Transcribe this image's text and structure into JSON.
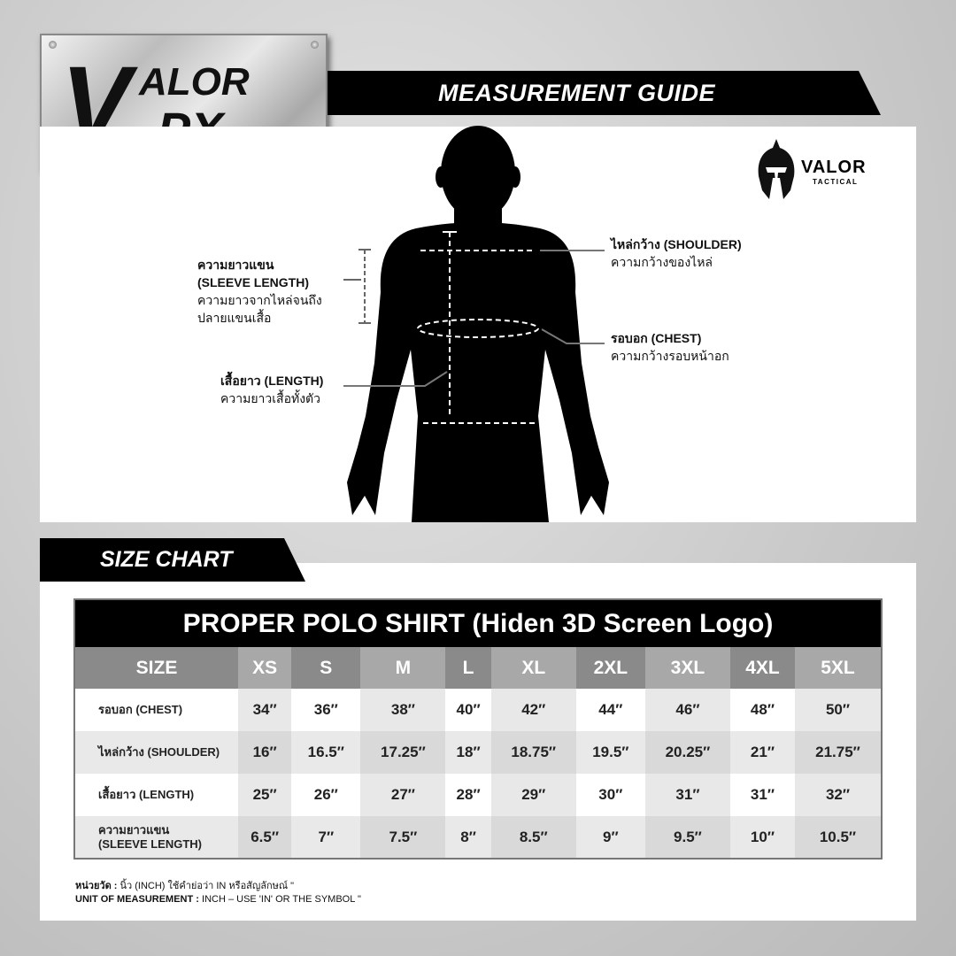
{
  "brand": {
    "logo_text": "VALOR-PX",
    "secondary_logo": "VALOR",
    "secondary_logo_sub": "TACTICAL"
  },
  "guide": {
    "title": "MEASUREMENT GUIDE",
    "sleeve": {
      "th": "ความยาวแขน",
      "en": "(SLEEVE LENGTH)",
      "desc1": "ความยาวจากไหล่จนถึง",
      "desc2": "ปลายแขนเสื้อ"
    },
    "length": {
      "title": "เสื้อยาว (LENGTH)",
      "desc": "ความยาวเสื้อทั้งตัว"
    },
    "shoulder": {
      "title": "ไหล่กว้าง (SHOULDER)",
      "desc": "ความกว้างของไหล่"
    },
    "chest": {
      "title": "รอบอก (CHEST)",
      "desc": "ความกว้างรอบหน้าอก"
    }
  },
  "size_chart": {
    "tab": "SIZE CHART",
    "title": "PROPER POLO SHIRT (Hiden 3D Screen Logo)",
    "headers": [
      "SIZE",
      "XS",
      "S",
      "M",
      "L",
      "XL",
      "2XL",
      "3XL",
      "4XL",
      "5XL"
    ],
    "rows": [
      {
        "label": "รอบอก (CHEST)",
        "values": [
          "34″",
          "36″",
          "38″",
          "40″",
          "42″",
          "44″",
          "46″",
          "48″",
          "50″"
        ]
      },
      {
        "label": "ไหล่กว้าง (SHOULDER)",
        "values": [
          "16″",
          "16.5″",
          "17.25″",
          "18″",
          "18.75″",
          "19.5″",
          "20.25″",
          "21″",
          "21.75″"
        ]
      },
      {
        "label": "เสื้อยาว (LENGTH)",
        "values": [
          "25″",
          "26″",
          "27″",
          "28″",
          "29″",
          "30″",
          "31″",
          "31″",
          "32″"
        ]
      },
      {
        "label": "ความยาวแขน",
        "label2": "(SLEEVE LENGTH)",
        "values": [
          "6.5″",
          "7″",
          "7.5″",
          "8″",
          "8.5″",
          "9″",
          "9.5″",
          "10″",
          "10.5″"
        ]
      }
    ]
  },
  "notes": {
    "th_label": "หน่วยวัด :",
    "th_text": "นิ้ว (INCH) ใช้คำย่อว่า IN หรือสัญลักษณ์ \"",
    "en_label": "UNIT OF MEASUREMENT :",
    "en_text": "INCH – USE 'IN' OR THE SYMBOL \""
  }
}
